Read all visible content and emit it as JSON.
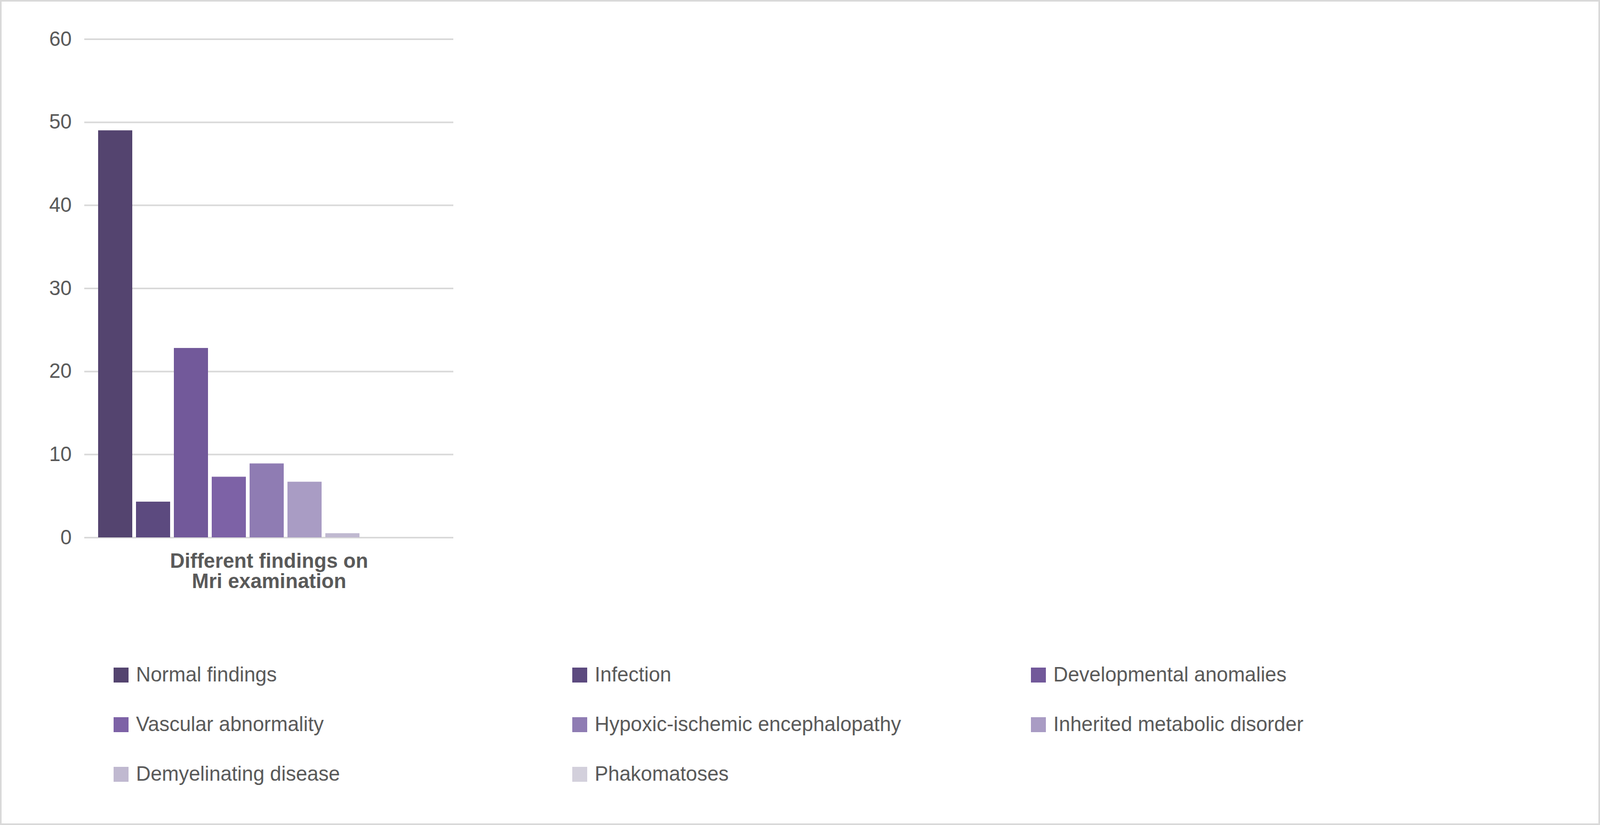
{
  "chart_data": {
    "type": "bar",
    "categories": [
      "Different findings on Mri examination",
      null,
      null,
      null
    ],
    "series": [
      {
        "name": "Normal findings",
        "color": "#54446f",
        "values": [
          49,
          null,
          null,
          null
        ]
      },
      {
        "name": "Infection",
        "color": "#5c4a7f",
        "values": [
          4.3,
          null,
          null,
          null
        ]
      },
      {
        "name": "Developmental anomalies",
        "color": "#72599a",
        "values": [
          22.8,
          null,
          null,
          null
        ]
      },
      {
        "name": "Vascular abnormality",
        "color": "#7d62a6",
        "values": [
          7.3,
          null,
          null,
          null
        ]
      },
      {
        "name": "Hypoxic-ischemic encephalopathy",
        "color": "#8f7cb3",
        "values": [
          8.9,
          null,
          null,
          null
        ]
      },
      {
        "name": "Inherited metabolic disorder",
        "color": "#a99cc4",
        "values": [
          6.7,
          null,
          null,
          null
        ]
      },
      {
        "name": "Demyelinating disease",
        "color": "#c0b9d0",
        "values": [
          0.5,
          null,
          null,
          null
        ]
      },
      {
        "name": "Phakomatoses",
        "color": "#d3d0dc",
        "values": [
          0,
          null,
          null,
          null
        ]
      }
    ],
    "ylim": [
      0,
      60
    ],
    "yticks": [
      0,
      10,
      20,
      30,
      40,
      50,
      60
    ],
    "grid": true,
    "legend": "bottom"
  }
}
